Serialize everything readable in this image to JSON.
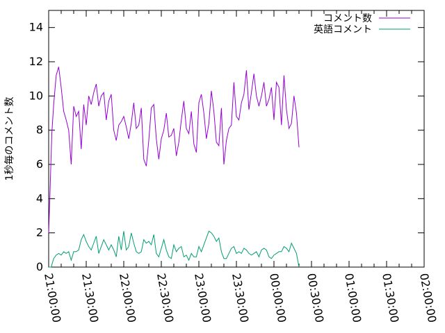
{
  "chart_data": {
    "type": "line",
    "ylabel": "1秒毎のコメント数",
    "xlabel": "",
    "ylim": [
      0,
      15
    ],
    "y_ticks": [
      0,
      2,
      4,
      6,
      8,
      10,
      12,
      14
    ],
    "x_ticks": [
      "21:00:00",
      "21:30:00",
      "22:00:00",
      "22:30:00",
      "23:00:00",
      "23:30:00",
      "00:00:00",
      "00:30:00",
      "01:00:00",
      "01:30:00",
      "02:00:00"
    ],
    "x_range_minutes": [
      0,
      300
    ],
    "legend_position": "top-right",
    "grid": false,
    "series": [
      {
        "name": "コメント数",
        "color": "#9400d3",
        "points": [
          [
            0,
            2.0
          ],
          [
            1,
            4.2
          ],
          [
            2.5,
            7.8
          ],
          [
            4,
            9.5
          ],
          [
            6,
            11.2
          ],
          [
            8,
            11.7
          ],
          [
            10,
            10.5
          ],
          [
            12,
            9.1
          ],
          [
            14,
            8.6
          ],
          [
            16,
            8.0
          ],
          [
            18,
            6.0
          ],
          [
            20,
            9.4
          ],
          [
            22,
            8.8
          ],
          [
            24,
            9.1
          ],
          [
            26,
            6.9
          ],
          [
            28,
            9.5
          ],
          [
            30,
            8.3
          ],
          [
            32,
            10.0
          ],
          [
            34,
            9.5
          ],
          [
            36,
            10.2
          ],
          [
            38,
            10.7
          ],
          [
            40,
            9.4
          ],
          [
            42,
            10.0
          ],
          [
            44,
            10.2
          ],
          [
            46,
            8.6
          ],
          [
            48,
            9.7
          ],
          [
            50,
            10.1
          ],
          [
            52,
            8.0
          ],
          [
            54,
            7.4
          ],
          [
            56,
            8.3
          ],
          [
            58,
            8.5
          ],
          [
            60,
            8.8
          ],
          [
            62,
            8.2
          ],
          [
            64,
            7.5
          ],
          [
            66,
            8.4
          ],
          [
            68,
            9.6
          ],
          [
            70,
            8.1
          ],
          [
            72,
            8.3
          ],
          [
            74,
            9.3
          ],
          [
            76,
            6.3
          ],
          [
            78,
            5.9
          ],
          [
            80,
            7.4
          ],
          [
            82,
            9.3
          ],
          [
            84,
            9.5
          ],
          [
            86,
            7.5
          ],
          [
            88,
            6.3
          ],
          [
            90,
            7.5
          ],
          [
            92,
            8.0
          ],
          [
            94,
            9.0
          ],
          [
            96,
            7.6
          ],
          [
            98,
            7.7
          ],
          [
            100,
            8.1
          ],
          [
            102,
            6.5
          ],
          [
            104,
            7.3
          ],
          [
            106,
            8.6
          ],
          [
            108,
            9.7
          ],
          [
            110,
            8.1
          ],
          [
            112,
            7.8
          ],
          [
            114,
            9.1
          ],
          [
            116,
            7.2
          ],
          [
            118,
            6.7
          ],
          [
            120,
            9.6
          ],
          [
            122,
            10.1
          ],
          [
            124,
            9.0
          ],
          [
            126,
            7.5
          ],
          [
            128,
            8.4
          ],
          [
            130,
            10.3
          ],
          [
            132,
            9.1
          ],
          [
            134,
            7.3
          ],
          [
            136,
            7.1
          ],
          [
            138,
            9.3
          ],
          [
            140,
            6.0
          ],
          [
            142,
            7.4
          ],
          [
            144,
            8.1
          ],
          [
            146,
            8.3
          ],
          [
            148,
            10.8
          ],
          [
            150,
            8.8
          ],
          [
            152,
            8.6
          ],
          [
            154,
            9.6
          ],
          [
            156,
            10.1
          ],
          [
            158,
            11.5
          ],
          [
            160,
            9.2
          ],
          [
            162,
            10.2
          ],
          [
            164,
            11.3
          ],
          [
            166,
            10.0
          ],
          [
            168,
            9.4
          ],
          [
            170,
            10.0
          ],
          [
            172,
            10.8
          ],
          [
            174,
            9.4
          ],
          [
            176,
            9.8
          ],
          [
            178,
            10.5
          ],
          [
            180,
            8.6
          ],
          [
            182,
            10.8
          ],
          [
            184,
            10.5
          ],
          [
            186,
            8.3
          ],
          [
            188,
            11.2
          ],
          [
            190,
            9.2
          ],
          [
            192,
            8.1
          ],
          [
            194,
            8.4
          ],
          [
            196,
            10.0
          ],
          [
            198,
            9.0
          ],
          [
            200,
            7.0
          ]
        ]
      },
      {
        "name": "英語コメント",
        "color": "#009e73",
        "points": [
          [
            0,
            0.0
          ],
          [
            2,
            0.0
          ],
          [
            4,
            0.5
          ],
          [
            6,
            0.7
          ],
          [
            8,
            0.8
          ],
          [
            10,
            0.7
          ],
          [
            12,
            0.9
          ],
          [
            14,
            0.8
          ],
          [
            16,
            0.9
          ],
          [
            18,
            0.4
          ],
          [
            20,
            0.9
          ],
          [
            22,
            0.9
          ],
          [
            24,
            1.0
          ],
          [
            26,
            1.6
          ],
          [
            28,
            1.9
          ],
          [
            30,
            1.5
          ],
          [
            32,
            1.2
          ],
          [
            34,
            1.0
          ],
          [
            36,
            1.4
          ],
          [
            38,
            1.8
          ],
          [
            40,
            0.8
          ],
          [
            42,
            1.2
          ],
          [
            44,
            1.6
          ],
          [
            46,
            1.3
          ],
          [
            48,
            1.0
          ],
          [
            50,
            1.3
          ],
          [
            52,
            1.0
          ],
          [
            54,
            0.6
          ],
          [
            56,
            1.8
          ],
          [
            58,
            1.0
          ],
          [
            60,
            2.1
          ],
          [
            62,
            1.0
          ],
          [
            64,
            1.2
          ],
          [
            66,
            2.0
          ],
          [
            68,
            1.4
          ],
          [
            70,
            0.9
          ],
          [
            72,
            0.8
          ],
          [
            74,
            0.9
          ],
          [
            76,
            1.6
          ],
          [
            78,
            1.4
          ],
          [
            80,
            1.5
          ],
          [
            82,
            1.3
          ],
          [
            84,
            1.9
          ],
          [
            86,
            0.8
          ],
          [
            88,
            0.6
          ],
          [
            90,
            1.1
          ],
          [
            92,
            1.6
          ],
          [
            94,
            1.0
          ],
          [
            96,
            0.6
          ],
          [
            98,
            0.5
          ],
          [
            100,
            1.3
          ],
          [
            102,
            0.9
          ],
          [
            104,
            1.1
          ],
          [
            106,
            1.2
          ],
          [
            108,
            0.6
          ],
          [
            110,
            0.7
          ],
          [
            112,
            0.4
          ],
          [
            114,
            0.8
          ],
          [
            116,
            0.6
          ],
          [
            118,
            0.6
          ],
          [
            120,
            1.2
          ],
          [
            122,
            0.9
          ],
          [
            124,
            1.3
          ],
          [
            126,
            1.7
          ],
          [
            128,
            2.1
          ],
          [
            130,
            2.0
          ],
          [
            132,
            1.8
          ],
          [
            134,
            1.5
          ],
          [
            136,
            1.7
          ],
          [
            138,
            0.9
          ],
          [
            140,
            0.5
          ],
          [
            142,
            0.5
          ],
          [
            144,
            0.8
          ],
          [
            146,
            1.1
          ],
          [
            148,
            1.2
          ],
          [
            150,
            0.8
          ],
          [
            152,
            0.9
          ],
          [
            154,
            0.8
          ],
          [
            156,
            1.1
          ],
          [
            158,
            1.0
          ],
          [
            160,
            0.8
          ],
          [
            162,
            0.7
          ],
          [
            164,
            0.8
          ],
          [
            166,
            0.9
          ],
          [
            168,
            0.6
          ],
          [
            170,
            1.0
          ],
          [
            172,
            1.1
          ],
          [
            174,
            1.0
          ],
          [
            176,
            0.6
          ],
          [
            178,
            0.5
          ],
          [
            180,
            0.7
          ],
          [
            182,
            0.8
          ],
          [
            184,
            0.9
          ],
          [
            186,
            0.9
          ],
          [
            188,
            1.2
          ],
          [
            190,
            1.1
          ],
          [
            192,
            0.9
          ],
          [
            194,
            1.4
          ],
          [
            196,
            1.1
          ],
          [
            198,
            0.8
          ],
          [
            200,
            0.0
          ]
        ]
      }
    ]
  }
}
